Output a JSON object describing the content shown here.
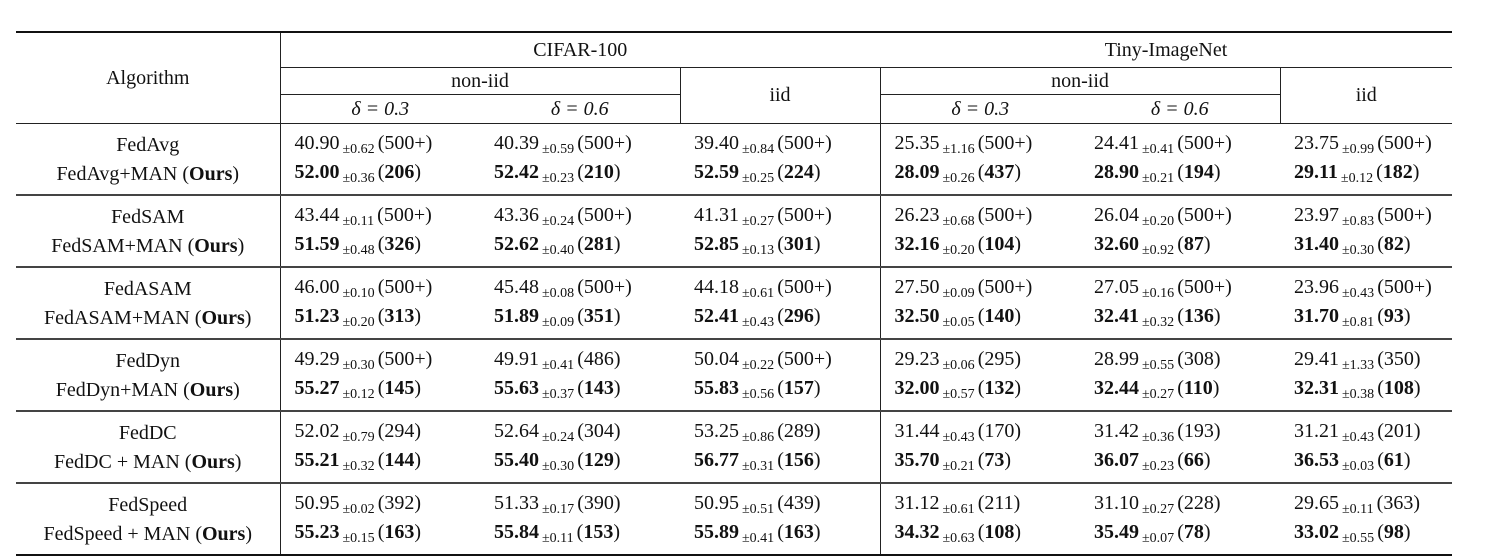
{
  "table": {
    "header": {
      "algorithm_label": "Algorithm",
      "datasets": [
        {
          "name": "CIFAR-100",
          "noniid_label": "non-iid",
          "iid_label": "iid",
          "deltas": [
            "δ = 0.3",
            "δ = 0.6"
          ]
        },
        {
          "name": "Tiny-ImageNet",
          "noniid_label": "non-iid",
          "iid_label": "iid",
          "deltas": [
            "δ = 0.3",
            "δ = 0.6"
          ]
        }
      ]
    },
    "groups": [
      {
        "base": {
          "name": "FedAvg",
          "cells": [
            {
              "mean": "40.90",
              "std": "±0.62",
              "rounds": "(500+)"
            },
            {
              "mean": "40.39",
              "std": "±0.59",
              "rounds": "(500+)"
            },
            {
              "mean": "39.40",
              "std": "±0.84",
              "rounds": "(500+)"
            },
            {
              "mean": "25.35",
              "std": "±1.16",
              "rounds": "(500+)"
            },
            {
              "mean": "24.41",
              "std": "±0.41",
              "rounds": "(500+)"
            },
            {
              "mean": "23.75",
              "std": "±0.99",
              "rounds": "(500+)"
            }
          ]
        },
        "ours": {
          "name": "FedAvg+MAN",
          "suffix": "Ours",
          "cells": [
            {
              "mean": "52.00",
              "std": "±0.36",
              "rounds": "206"
            },
            {
              "mean": "52.42",
              "std": "±0.23",
              "rounds": "210"
            },
            {
              "mean": "52.59",
              "std": "±0.25",
              "rounds": "224"
            },
            {
              "mean": "28.09",
              "std": "±0.26",
              "rounds": "437"
            },
            {
              "mean": "28.90",
              "std": "±0.21",
              "rounds": "194"
            },
            {
              "mean": "29.11",
              "std": "±0.12",
              "rounds": "182"
            }
          ]
        }
      },
      {
        "base": {
          "name": "FedSAM",
          "cells": [
            {
              "mean": "43.44",
              "std": "±0.11",
              "rounds": "(500+)"
            },
            {
              "mean": "43.36",
              "std": "±0.24",
              "rounds": "(500+)"
            },
            {
              "mean": "41.31",
              "std": "±0.27",
              "rounds": "(500+)"
            },
            {
              "mean": "26.23",
              "std": "±0.68",
              "rounds": "(500+)"
            },
            {
              "mean": "26.04",
              "std": "±0.20",
              "rounds": "(500+)"
            },
            {
              "mean": "23.97",
              "std": "±0.83",
              "rounds": "(500+)"
            }
          ]
        },
        "ours": {
          "name": "FedSAM+MAN",
          "suffix": "Ours",
          "cells": [
            {
              "mean": "51.59",
              "std": "±0.48",
              "rounds": "326"
            },
            {
              "mean": "52.62",
              "std": "±0.40",
              "rounds": "281"
            },
            {
              "mean": "52.85",
              "std": "±0.13",
              "rounds": "301"
            },
            {
              "mean": "32.16",
              "std": "±0.20",
              "rounds": "104"
            },
            {
              "mean": "32.60",
              "std": "±0.92",
              "rounds": "87"
            },
            {
              "mean": "31.40",
              "std": "±0.30",
              "rounds": "82"
            }
          ]
        }
      },
      {
        "base": {
          "name": "FedASAM",
          "cells": [
            {
              "mean": "46.00",
              "std": "±0.10",
              "rounds": "(500+)"
            },
            {
              "mean": "45.48",
              "std": "±0.08",
              "rounds": "(500+)"
            },
            {
              "mean": "44.18",
              "std": "±0.61",
              "rounds": "(500+)"
            },
            {
              "mean": "27.50",
              "std": "±0.09",
              "rounds": "(500+)"
            },
            {
              "mean": "27.05",
              "std": "±0.16",
              "rounds": "(500+)"
            },
            {
              "mean": "23.96",
              "std": "±0.43",
              "rounds": "(500+)"
            }
          ]
        },
        "ours": {
          "name": "FedASAM+MAN",
          "suffix": "Ours",
          "cells": [
            {
              "mean": "51.23",
              "std": "±0.20",
              "rounds": "313"
            },
            {
              "mean": "51.89",
              "std": "±0.09",
              "rounds": "351"
            },
            {
              "mean": "52.41",
              "std": "±0.43",
              "rounds": "296"
            },
            {
              "mean": "32.50",
              "std": "±0.05",
              "rounds": "140"
            },
            {
              "mean": "32.41",
              "std": "±0.32",
              "rounds": "136"
            },
            {
              "mean": "31.70",
              "std": "±0.81",
              "rounds": "93"
            }
          ]
        }
      },
      {
        "base": {
          "name": "FedDyn",
          "cells": [
            {
              "mean": "49.29",
              "std": "±0.30",
              "rounds": "(500+)"
            },
            {
              "mean": "49.91",
              "std": "±0.41",
              "rounds": "(486)"
            },
            {
              "mean": "50.04",
              "std": "±0.22",
              "rounds": "(500+)"
            },
            {
              "mean": "29.23",
              "std": "±0.06",
              "rounds": "(295)"
            },
            {
              "mean": "28.99",
              "std": "±0.55",
              "rounds": "(308)"
            },
            {
              "mean": "29.41",
              "std": "±1.33",
              "rounds": "(350)"
            }
          ]
        },
        "ours": {
          "name": "FedDyn+MAN",
          "suffix": "Ours",
          "cells": [
            {
              "mean": "55.27",
              "std": "±0.12",
              "rounds": "145"
            },
            {
              "mean": "55.63",
              "std": "±0.37",
              "rounds": "143"
            },
            {
              "mean": "55.83",
              "std": "±0.56",
              "rounds": "157"
            },
            {
              "mean": "32.00",
              "std": "±0.57",
              "rounds": "132"
            },
            {
              "mean": "32.44",
              "std": "±0.27",
              "rounds": "110"
            },
            {
              "mean": "32.31",
              "std": "±0.38",
              "rounds": "108"
            }
          ]
        }
      },
      {
        "base": {
          "name": "FedDC",
          "cells": [
            {
              "mean": "52.02",
              "std": "±0.79",
              "rounds": "(294)"
            },
            {
              "mean": "52.64",
              "std": "±0.24",
              "rounds": "(304)"
            },
            {
              "mean": "53.25",
              "std": "±0.86",
              "rounds": "(289)"
            },
            {
              "mean": "31.44",
              "std": "±0.43",
              "rounds": "(170)"
            },
            {
              "mean": "31.42",
              "std": "±0.36",
              "rounds": "(193)"
            },
            {
              "mean": "31.21",
              "std": "±0.43",
              "rounds": "(201)"
            }
          ]
        },
        "ours": {
          "name": "FedDC + MAN",
          "suffix": "Ours",
          "cells": [
            {
              "mean": "55.21",
              "std": "±0.32",
              "rounds": "144"
            },
            {
              "mean": "55.40",
              "std": "±0.30",
              "rounds": "129"
            },
            {
              "mean": "56.77",
              "std": "±0.31",
              "rounds": "156"
            },
            {
              "mean": "35.70",
              "std": "±0.21",
              "rounds": "73"
            },
            {
              "mean": "36.07",
              "std": "±0.23",
              "rounds": "66"
            },
            {
              "mean": "36.53",
              "std": "±0.03",
              "rounds": "61"
            }
          ]
        }
      },
      {
        "base": {
          "name": "FedSpeed",
          "cells": [
            {
              "mean": "50.95",
              "std": "±0.02",
              "rounds": "(392)"
            },
            {
              "mean": "51.33",
              "std": "±0.17",
              "rounds": "(390)"
            },
            {
              "mean": "50.95",
              "std": "±0.51",
              "rounds": "(439)"
            },
            {
              "mean": "31.12",
              "std": "±0.61",
              "rounds": "(211)"
            },
            {
              "mean": "31.10",
              "std": "±0.27",
              "rounds": "(228)"
            },
            {
              "mean": "29.65",
              "std": "±0.11",
              "rounds": "(363)"
            }
          ]
        },
        "ours": {
          "name": "FedSpeed + MAN",
          "suffix": "Ours",
          "cells": [
            {
              "mean": "55.23",
              "std": "±0.15",
              "rounds": "163"
            },
            {
              "mean": "55.84",
              "std": "±0.11",
              "rounds": "153"
            },
            {
              "mean": "55.89",
              "std": "±0.41",
              "rounds": "163"
            },
            {
              "mean": "34.32",
              "std": "±0.63",
              "rounds": "108"
            },
            {
              "mean": "35.49",
              "std": "±0.07",
              "rounds": "78"
            },
            {
              "mean": "33.02",
              "std": "±0.55",
              "rounds": "98"
            }
          ]
        }
      }
    ]
  }
}
